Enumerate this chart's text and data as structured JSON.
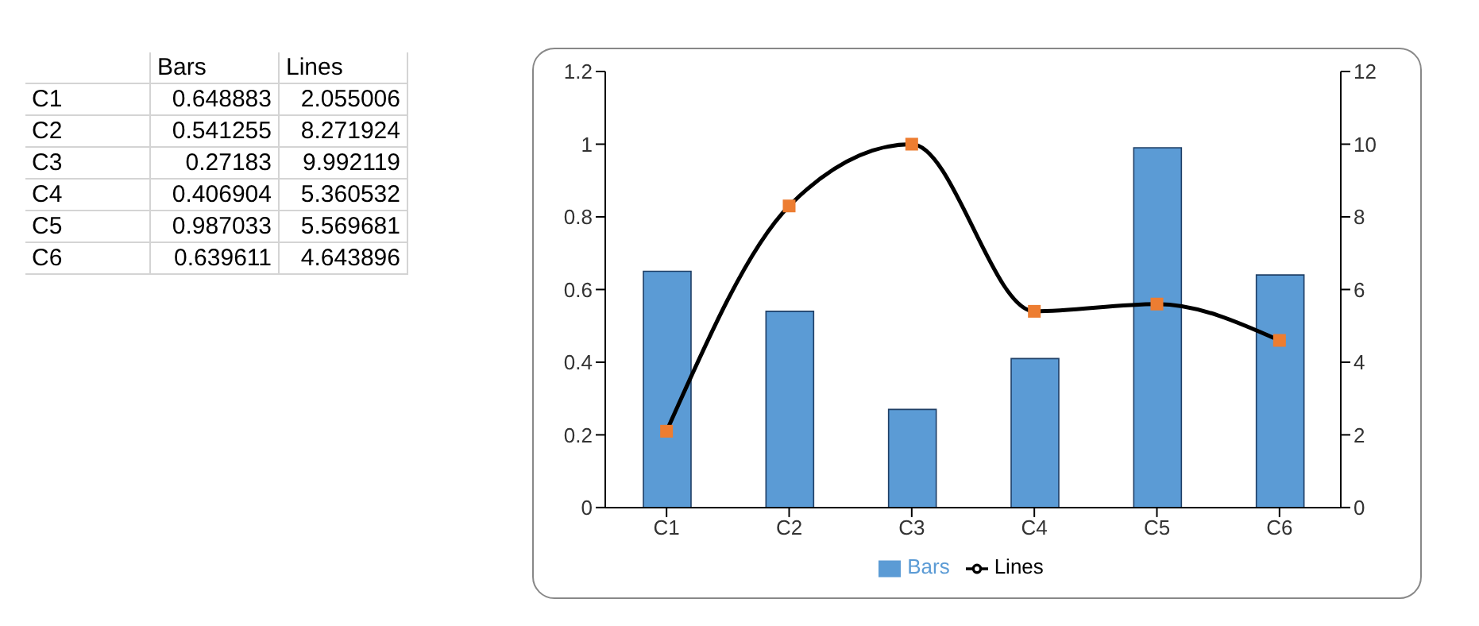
{
  "chart_data": [
    {
      "type": "heatmap",
      "categories": [
        "Bars",
        "Lines"
      ],
      "y_categories": [
        "C1",
        "C2",
        "C3",
        "C4",
        "C5",
        "C6"
      ],
      "cells": [
        [
          0.648883,
          2.055006
        ],
        [
          0.541255,
          8.271924
        ],
        [
          0.27183,
          9.992119
        ],
        [
          0.406904,
          5.360532
        ],
        [
          0.987033,
          5.569681
        ],
        [
          0.639611,
          4.643896
        ]
      ],
      "data_labels": true
    },
    {
      "type": "bar",
      "categories": [
        "C1",
        "C2",
        "C3",
        "C4",
        "C5",
        "C6"
      ],
      "series": [
        {
          "name": "Bars",
          "color": "#5b9bd5",
          "values": [
            0.65,
            0.54,
            0.27,
            0.41,
            0.99,
            0.64
          ]
        },
        {
          "name": "Lines",
          "type": "line",
          "axis": "y2",
          "color": "#000000",
          "colors": [
            "#ed7d31",
            "#ed7d31",
            "#ed7d31",
            "#ed7d31",
            "#ed7d31",
            "#ed7d31"
          ],
          "values": [
            2.1,
            8.3,
            10,
            5.4,
            5.6,
            4.6
          ]
        }
      ],
      "ylim": [
        0,
        1.2
      ],
      "yticks": [
        0,
        0.2,
        0.4,
        0.6,
        0.8,
        1,
        1.2
      ],
      "y2lim": [
        0,
        12
      ],
      "y2ticks": [
        0,
        2,
        4,
        6,
        8,
        10,
        12
      ],
      "grid": false,
      "legend": "bottom",
      "marker": "square"
    }
  ]
}
